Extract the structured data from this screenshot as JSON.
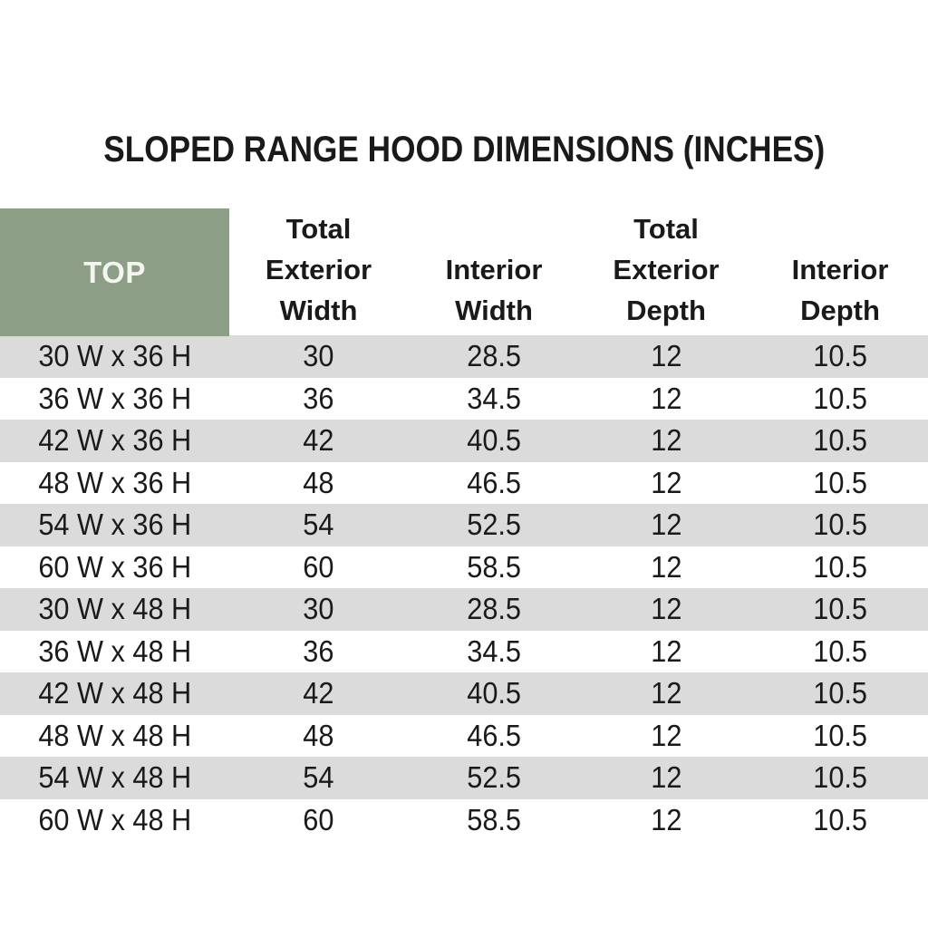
{
  "page_title": "SLOPED RANGE HOOD DIMENSIONS (INCHES)",
  "colors": {
    "background": "#FFFFFF",
    "header_cell_green": "#8C9E86",
    "row_alternate_gray": "#DBDBDB",
    "text": "#1A1A1A",
    "corner_label_text": "#F4F4F1"
  },
  "header": {
    "corner_label": "TOP",
    "column_label_lines": [
      [
        "Total",
        "Exterior",
        "Width"
      ],
      [
        "Interior",
        "Width"
      ],
      [
        "Total",
        "Exterior",
        "Depth"
      ],
      [
        "Interior",
        "Depth"
      ]
    ]
  },
  "chart_data": {
    "type": "table",
    "title": "SLOPED RANGE HOOD DIMENSIONS (INCHES)",
    "units": "inches",
    "columns": [
      "TOP",
      "Total Exterior Width",
      "Interior Width",
      "Total Exterior Depth",
      "Interior Depth"
    ],
    "rows": [
      [
        "30 W x 36 H",
        "30",
        "28.5",
        "12",
        "10.5"
      ],
      [
        "36 W x 36 H",
        "36",
        "34.5",
        "12",
        "10.5"
      ],
      [
        "42 W x 36 H",
        "42",
        "40.5",
        "12",
        "10.5"
      ],
      [
        "48 W x 36 H",
        "48",
        "46.5",
        "12",
        "10.5"
      ],
      [
        "54 W x 36 H",
        "54",
        "52.5",
        "12",
        "10.5"
      ],
      [
        "60 W x 36 H",
        "60",
        "58.5",
        "12",
        "10.5"
      ],
      [
        "30 W x 48 H",
        "30",
        "28.5",
        "12",
        "10.5"
      ],
      [
        "36 W x 48 H",
        "36",
        "34.5",
        "12",
        "10.5"
      ],
      [
        "42 W x 48 H",
        "42",
        "40.5",
        "12",
        "10.5"
      ],
      [
        "48 W x 48 H",
        "48",
        "46.5",
        "12",
        "10.5"
      ],
      [
        "54 W x 48 H",
        "54",
        "52.5",
        "12",
        "10.5"
      ],
      [
        "60 W x 48 H",
        "60",
        "58.5",
        "12",
        "10.5"
      ]
    ]
  }
}
